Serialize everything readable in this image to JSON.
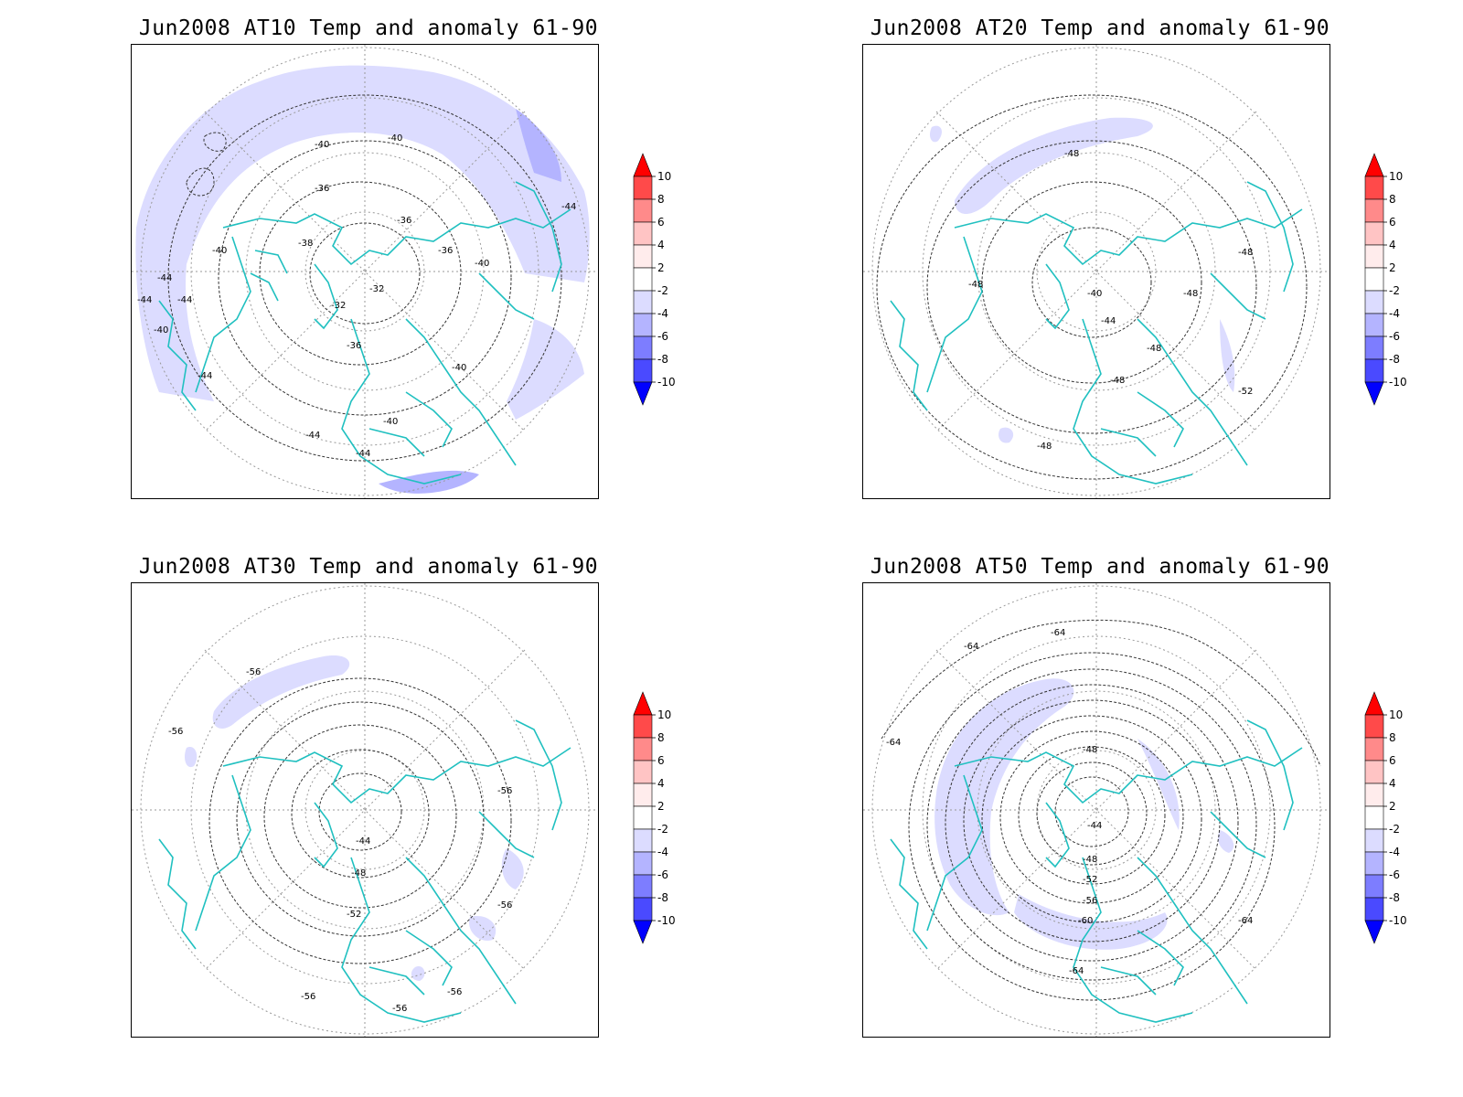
{
  "panels": [
    {
      "title": "Jun2008 AT10 Temp and anomaly 61-90",
      "contour_labels": [
        "-40",
        "-40",
        "-36",
        "-36",
        "-36",
        "-32",
        "-32",
        "-40",
        "-44",
        "-44",
        "-44",
        "-44",
        "-40",
        "-44",
        "-40",
        "-40",
        "-44",
        "-44",
        "-36",
        "-38",
        "-40"
      ]
    },
    {
      "title": "Jun2008 AT20 Temp and anomaly 61-90",
      "contour_labels": [
        "-48",
        "-48",
        "-40",
        "-44",
        "-48",
        "-48",
        "-48",
        "-48",
        "-52",
        "-48"
      ]
    },
    {
      "title": "Jun2008 AT30 Temp and anomaly 61-90",
      "contour_labels": [
        "-56",
        "-56",
        "-44",
        "-48",
        "-52",
        "-56",
        "-56",
        "-56",
        "-56",
        "-56"
      ]
    },
    {
      "title": "Jun2008 AT50 Temp and anomaly 61-90",
      "contour_labels": [
        "-64",
        "-64",
        "-64",
        "-48",
        "-44",
        "-48",
        "-52",
        "-56",
        "-60",
        "-64",
        "-64"
      ]
    }
  ],
  "colorbar": {
    "labels": [
      "10",
      "8",
      "6",
      "4",
      "2",
      "-2",
      "-4",
      "-6",
      "-8",
      "-10"
    ],
    "colors": [
      "#ff0000",
      "#ff4a4a",
      "#ff8a8a",
      "#ffc4c4",
      "#ffecec",
      "#ffffff",
      "#dcdcff",
      "#b4b4ff",
      "#7d7dff",
      "#4a4aff",
      "#0000ff"
    ]
  }
}
